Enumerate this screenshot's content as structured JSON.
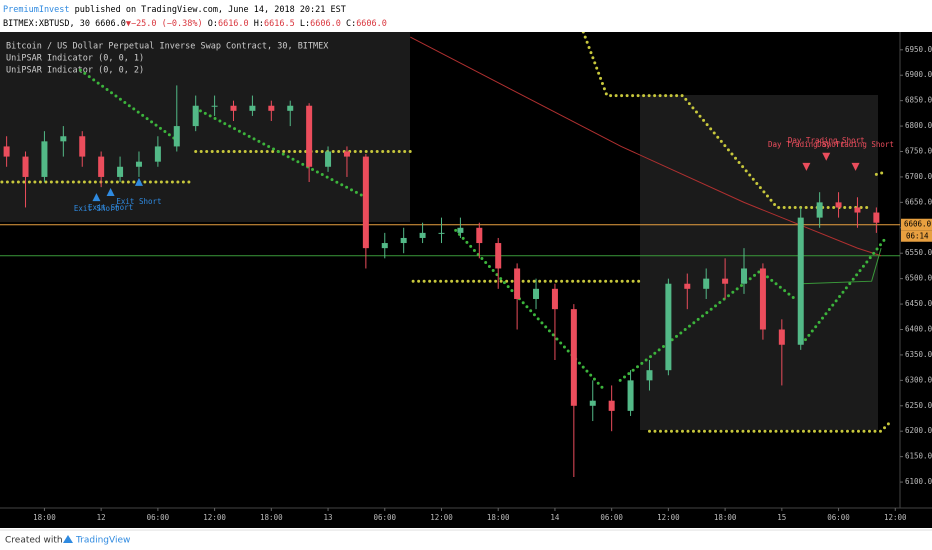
{
  "header": {
    "author": "PremiumInvest",
    "published": " published on TradingView.com, June 14, 2018 20:21 EST",
    "quote": [
      {
        "text": "BITMEX:XBTUSD, 30 6606.0",
        "color": "#000000"
      },
      {
        "text": "▼−25.0 (−0.38%)",
        "color": "#d9363e"
      },
      {
        "text": " O:",
        "color": "#000000"
      },
      {
        "text": "6616.0",
        "color": "#d9363e"
      },
      {
        "text": " H:",
        "color": "#000000"
      },
      {
        "text": "6616.5",
        "color": "#d9363e"
      },
      {
        "text": " L:",
        "color": "#000000"
      },
      {
        "text": "6606.0",
        "color": "#d9363e"
      },
      {
        "text": " C:",
        "color": "#000000"
      },
      {
        "text": "6606.0",
        "color": "#d9363e"
      }
    ]
  },
  "chart_data": {
    "type": "candlestick",
    "legend": [
      "Bitcoin / US Dollar Perpetual Inverse Swap Contract, 30, BITMEX",
      "UniPSAR Indicator (0, 0, 1)",
      "UniPSAR Indicator (0, 0, 2)"
    ],
    "up_color": "#53b987",
    "down_color": "#eb4d5c",
    "x": [
      -10,
      -8,
      -6,
      -4,
      -2,
      0,
      2,
      4,
      6,
      8,
      10,
      12,
      14,
      16,
      18,
      20,
      22,
      24,
      26,
      28,
      30,
      32,
      34,
      36,
      38,
      40,
      42,
      44,
      46,
      48,
      50,
      52,
      54,
      56,
      58,
      60,
      62,
      64,
      66,
      68,
      70,
      72,
      74,
      76,
      78,
      80,
      82
    ],
    "open": [
      6760,
      6740,
      6700,
      6770,
      6780,
      6740,
      6700,
      6720,
      6730,
      6760,
      6800,
      6840,
      6840,
      6830,
      6840,
      6830,
      6840,
      6720,
      6750,
      6740,
      6560,
      6570,
      6580,
      6590,
      6590,
      6600,
      6570,
      6520,
      6460,
      6480,
      6440,
      6250,
      6260,
      6240,
      6300,
      6320,
      6490,
      6480,
      6500,
      6490,
      6520,
      6400,
      6370,
      6620,
      6650,
      6640,
      6630
    ],
    "high": [
      6780,
      6750,
      6790,
      6800,
      6790,
      6750,
      6740,
      6750,
      6780,
      6880,
      6860,
      6860,
      6850,
      6860,
      6850,
      6850,
      6845,
      6760,
      6760,
      6745,
      6590,
      6600,
      6610,
      6620,
      6620,
      6610,
      6580,
      6530,
      6500,
      6490,
      6450,
      6300,
      6290,
      6320,
      6340,
      6500,
      6510,
      6520,
      6540,
      6560,
      6530,
      6420,
      6640,
      6670,
      6670,
      6660,
      6640
    ],
    "low": [
      6720,
      6640,
      6690,
      6740,
      6720,
      6680,
      6690,
      6700,
      6720,
      6750,
      6790,
      6820,
      6810,
      6820,
      6810,
      6800,
      6690,
      6710,
      6700,
      6520,
      6540,
      6550,
      6570,
      6570,
      6580,
      6540,
      6480,
      6400,
      6440,
      6340,
      6110,
      6220,
      6200,
      6230,
      6280,
      6310,
      6440,
      6460,
      6460,
      6470,
      6380,
      6290,
      6360,
      6600,
      6620,
      6600,
      6590
    ],
    "close": [
      6740,
      6700,
      6770,
      6780,
      6740,
      6700,
      6720,
      6730,
      6760,
      6800,
      6840,
      6840,
      6830,
      6840,
      6830,
      6840,
      6720,
      6750,
      6740,
      6560,
      6570,
      6580,
      6590,
      6590,
      6600,
      6570,
      6520,
      6460,
      6480,
      6440,
      6250,
      6260,
      6240,
      6300,
      6320,
      6490,
      6480,
      6500,
      6490,
      6520,
      6400,
      6370,
      6620,
      6650,
      6640,
      6630,
      6610
    ],
    "dot_series": [
      {
        "color": "#c8c83c",
        "x": [
          -10.5,
          -6,
          -2,
          2,
          6,
          9.4,
          null,
          10,
          14,
          18,
          22,
          26,
          30,
          32.7,
          null,
          33,
          38,
          43,
          48,
          53,
          57.3,
          null,
          58,
          63,
          68,
          73,
          78,
          82.5,
          83.3
        ],
        "values": [
          6690,
          6690,
          6690,
          6690,
          6690,
          6690,
          null,
          6750,
          6750,
          6750,
          6750,
          6750,
          6750,
          6750,
          null,
          6495,
          6495,
          6495,
          6495,
          6495,
          6495,
          null,
          6200,
          6200,
          6200,
          6200,
          6200,
          6200,
          6215
        ]
      },
      {
        "color": "#c8c83c",
        "x": [
          51,
          53.5,
          61.5,
          71.5,
          81.5,
          null,
          82,
          83
        ],
        "values": [
          6985,
          6860,
          6860,
          6640,
          6640,
          null,
          6705,
          6710
        ]
      },
      {
        "color": "#3cb43c",
        "x": [
          -2.2,
          7.8,
          null,
          10.5,
          28.5,
          null,
          37.5,
          53.3,
          null,
          54.9,
          69.7,
          73.4,
          null,
          74.5,
          83
        ],
        "values": [
          6910,
          6775,
          null,
          6830,
          6655,
          null,
          6595,
          6280,
          null,
          6300,
          6515,
          6460,
          null,
          6380,
          6580
        ]
      }
    ],
    "lines": [
      {
        "color": "#b03030",
        "x": [
          32.7,
          55,
          68,
          80,
          82.5
        ],
        "values": [
          6975,
          6760,
          6650,
          6560,
          6545
        ]
      },
      {
        "color": "#3a9a3a",
        "x": [
          74,
          81.5,
          82.5
        ],
        "values": [
          6490,
          6495,
          6560
        ]
      }
    ],
    "levels": [
      {
        "value": 6606,
        "color": "#e8a040"
      },
      {
        "value": 6545,
        "color": "#3a9a3a"
      }
    ],
    "last_price": {
      "value": 6606,
      "label": "6606.0"
    },
    "countdown": "06:14",
    "annotations": [
      {
        "x": -0.5,
        "y": 6680,
        "text": "Exit Short",
        "color": "#2f8ae0",
        "dir": "up"
      },
      {
        "x": 1,
        "y": 6690,
        "text": "Exit Short",
        "color": "#2f8ae0",
        "dir": "up"
      },
      {
        "x": 4,
        "y": 6710,
        "text": "Exit Short",
        "color": "#2f8ae0",
        "dir": "up"
      },
      {
        "x": 74.6,
        "y": 6700,
        "text": "Day Trading Short",
        "color": "#eb4d5c",
        "dir": "down"
      },
      {
        "x": 76.7,
        "y": 6720,
        "text": "Day Trading Short",
        "color": "#eb4d5c",
        "dir": "down"
      },
      {
        "x": 79.8,
        "y": 6700,
        "text": "Day Trading Short",
        "color": "#eb4d5c",
        "dir": "down"
      }
    ],
    "xlim": [
      -10.7,
      84.5
    ],
    "xticks": [
      {
        "value": -6,
        "label": "18:00"
      },
      {
        "value": 0,
        "label": "12"
      },
      {
        "value": 6,
        "label": "06:00"
      },
      {
        "value": 12,
        "label": "12:00"
      },
      {
        "value": 18,
        "label": "18:00"
      },
      {
        "value": 24,
        "label": "13"
      },
      {
        "value": 30,
        "label": "06:00"
      },
      {
        "value": 36,
        "label": "12:00"
      },
      {
        "value": 42,
        "label": "18:00"
      },
      {
        "value": 48,
        "label": "14"
      },
      {
        "value": 54,
        "label": "06:00"
      },
      {
        "value": 60,
        "label": "12:00"
      },
      {
        "value": 66,
        "label": "18:00"
      },
      {
        "value": 72,
        "label": "15"
      },
      {
        "value": 78,
        "label": "06:00"
      },
      {
        "value": 84,
        "label": "12:00"
      }
    ],
    "ylim": [
      6049,
      6985
    ],
    "yticks": [
      {
        "value": 6100,
        "label": "6100.0"
      },
      {
        "value": 6150,
        "label": "6150.0"
      },
      {
        "value": 6200,
        "label": "6200.0"
      },
      {
        "value": 6250,
        "label": "6250.0"
      },
      {
        "value": 6300,
        "label": "6300.0"
      },
      {
        "value": 6350,
        "label": "6350.0"
      },
      {
        "value": 6400,
        "label": "6400.0"
      },
      {
        "value": 6450,
        "label": "6450.0"
      },
      {
        "value": 6500,
        "label": "6500.0"
      },
      {
        "value": 6550,
        "label": "6550.0"
      },
      {
        "value": 6600,
        "label": "6600.0"
      },
      {
        "value": 6650,
        "label": "6650.0"
      },
      {
        "value": 6700,
        "label": "6700.0"
      },
      {
        "value": 6750,
        "label": "6750.0"
      },
      {
        "value": 6800,
        "label": "6800.0"
      },
      {
        "value": 6850,
        "label": "6850.0"
      },
      {
        "value": 6900,
        "label": "6900.0"
      },
      {
        "value": 6950,
        "label": "6950.0"
      }
    ]
  },
  "footer": {
    "created": "Created with",
    "brand": "TradingView"
  }
}
